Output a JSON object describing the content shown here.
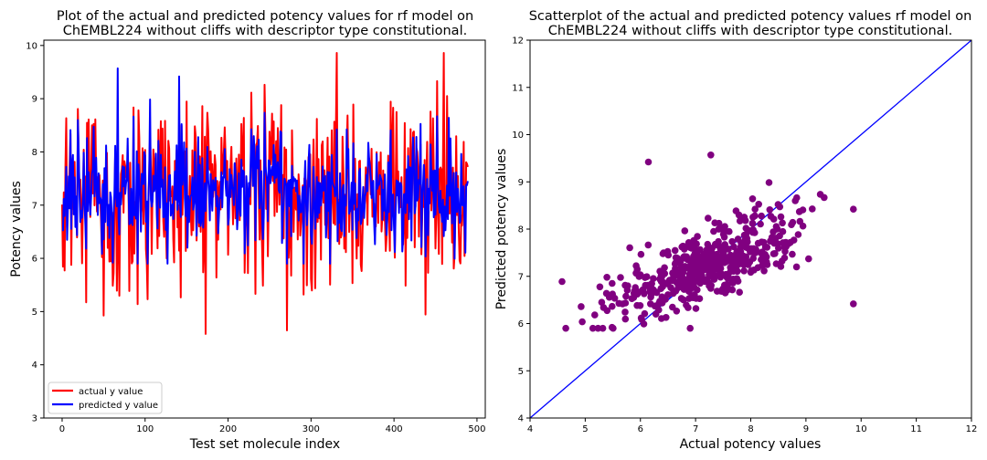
{
  "chart_data": [
    {
      "type": "line",
      "title_lines": [
        "Plot of the actual and predicted potency values for rf model on",
        "ChEMBL224 without cliffs with descriptor type constitutional."
      ],
      "xlabel": "Test set molecule index",
      "ylabel": "Potency values",
      "xlim": [
        -22,
        510
      ],
      "ylim": [
        3,
        10.1
      ],
      "xticks": [
        0,
        100,
        200,
        300,
        400,
        500
      ],
      "yticks": [
        3,
        4,
        5,
        6,
        7,
        8,
        9,
        10
      ],
      "legend_position": "lower-left",
      "series": [
        {
          "name": "actual y value",
          "color": "#ff0000",
          "n_points": 490,
          "mean": 7.2,
          "spread": 0.85,
          "min": 4.58,
          "max": 9.86
        },
        {
          "name": "predicted y value",
          "color": "#0000ff",
          "n_points": 490,
          "mean": 7.2,
          "spread": 0.5,
          "min": 5.9,
          "max": 9.57
        }
      ]
    },
    {
      "type": "scatter",
      "title_lines": [
        "Scatterplot of the actual and predicted potency values rf model on",
        "ChEMBL224 without cliffs with descriptor type constitutional."
      ],
      "xlabel": "Actual potency values",
      "ylabel": "Predicted potency values",
      "xlim": [
        4,
        12
      ],
      "ylim": [
        4,
        12
      ],
      "xticks": [
        4,
        5,
        6,
        7,
        8,
        9,
        10,
        11,
        12
      ],
      "yticks": [
        4,
        5,
        6,
        7,
        8,
        9,
        10,
        11,
        12
      ],
      "point_color": "#800080",
      "reference_line": {
        "from": [
          4,
          4
        ],
        "to": [
          12,
          12
        ],
        "color": "#0000ff"
      },
      "n_points": 490
    }
  ]
}
